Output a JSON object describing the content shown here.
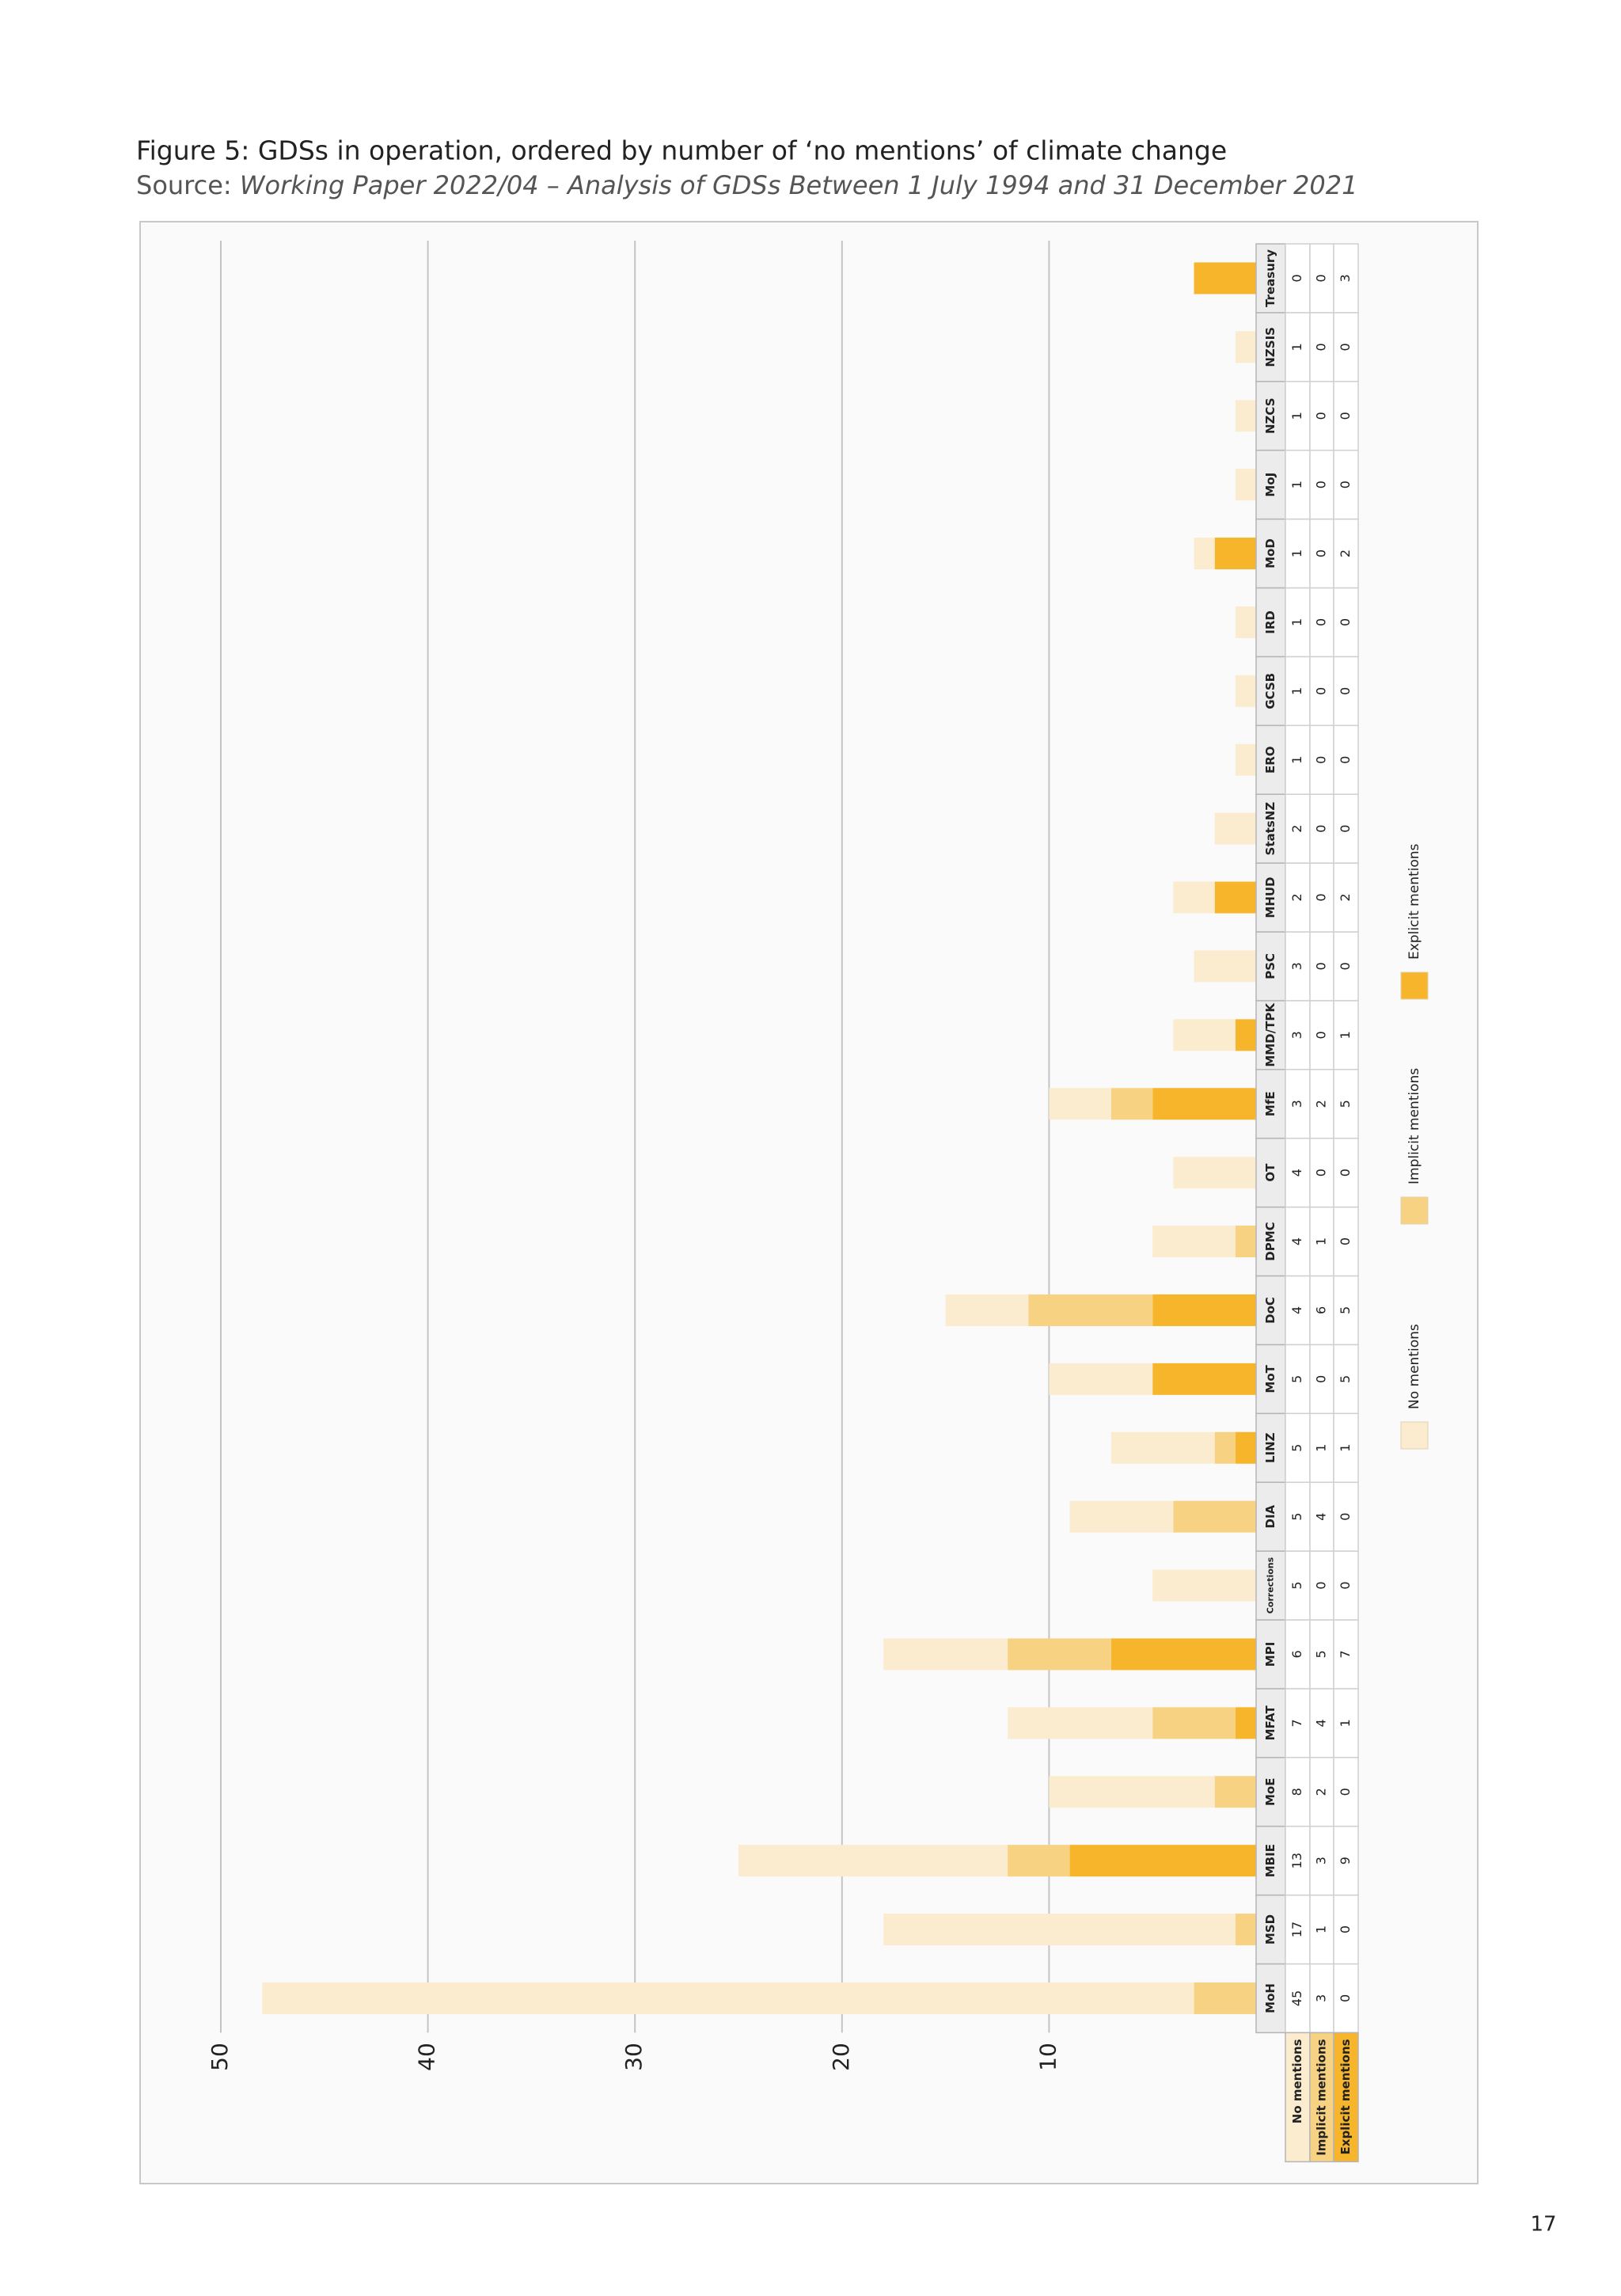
{
  "header": {
    "title": "Figure 5: GDSs in operation, ordered by number of ‘no mentions’ of climate change",
    "source_label": "Source:",
    "source_title": "Working Paper 2022/04 – Analysis of GDSs Between 1 July 1994 and 31 December 2021"
  },
  "chart_data": {
    "type": "bar",
    "orientation": "horizontal",
    "stacked": true,
    "categories": [
      "MoH",
      "MSD",
      "MBIE",
      "MoE",
      "MFAT",
      "MPI",
      "Corrections",
      "DIA",
      "LINZ",
      "MoT",
      "DoC",
      "DPMC",
      "OT",
      "MfE",
      "MMD/TPK",
      "PSC",
      "MHUD",
      "StatsNZ",
      "ERO",
      "GCSB",
      "IRD",
      "MoD",
      "MoJ",
      "NZCS",
      "NZSIS",
      "Treasury"
    ],
    "series": [
      {
        "name": "No mentions",
        "color": "#fbecd0",
        "values": [
          45,
          17,
          13,
          8,
          7,
          6,
          5,
          5,
          5,
          5,
          4,
          4,
          4,
          3,
          3,
          3,
          2,
          2,
          1,
          1,
          1,
          1,
          1,
          1,
          1,
          0
        ]
      },
      {
        "name": "Implicit mentions",
        "color": "#f8d283",
        "values": [
          3,
          1,
          3,
          2,
          4,
          5,
          0,
          4,
          1,
          0,
          6,
          1,
          0,
          2,
          0,
          0,
          0,
          0,
          0,
          0,
          0,
          0,
          0,
          0,
          0,
          0
        ]
      },
      {
        "name": "Explicit mentions",
        "color": "#f7b52c",
        "values": [
          0,
          0,
          9,
          0,
          1,
          7,
          0,
          0,
          1,
          5,
          5,
          0,
          0,
          5,
          1,
          0,
          2,
          0,
          0,
          0,
          0,
          2,
          0,
          0,
          0,
          3
        ]
      }
    ],
    "xlim": [
      0,
      52
    ],
    "xticks": [
      10,
      20,
      30,
      40,
      50
    ],
    "grid": true
  },
  "footer": {
    "page_number": "17"
  }
}
